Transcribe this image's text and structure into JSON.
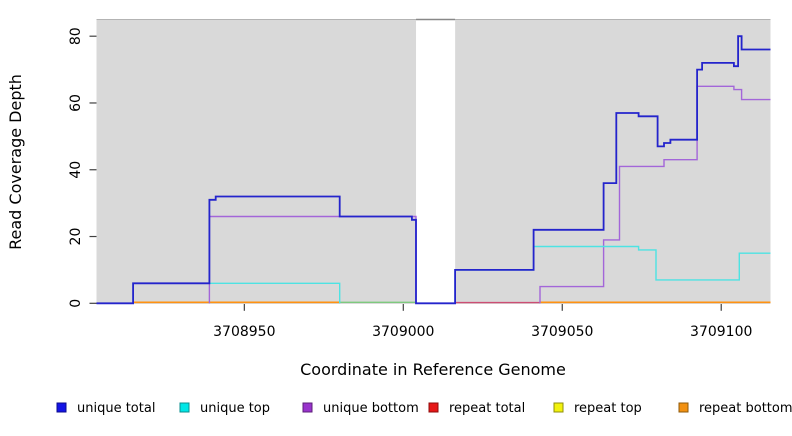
{
  "chart_data": {
    "type": "line",
    "subtype": "step-coverage",
    "title": "",
    "xlabel": "Coordinate in Reference Genome",
    "ylabel": "Read Coverage Depth",
    "xlim": [
      3708903.5,
      3709115.5
    ],
    "ylim": [
      0,
      85
    ],
    "grid": false,
    "legend_position": "bottom",
    "xticks": [
      3708950,
      3709000,
      3709050,
      3709100
    ],
    "xtick_labels": [
      "3708950",
      "3709000",
      "3709050",
      "3709100"
    ],
    "yticks": [
      0,
      20,
      40,
      60,
      80
    ],
    "ytick_labels": [
      "0",
      "20",
      "40",
      "60",
      "80"
    ],
    "panel_bg": "#d9d9d9",
    "gap_region": {
      "from": 3709004,
      "to": 3709016.3,
      "fill": "#ffffff",
      "top_border": "#888888"
    },
    "series": [
      {
        "name": "repeat top",
        "line_color": "#7ec97e",
        "width": 1.4,
        "note": "value 0 across plot; visible as green baseline overlap segment",
        "parts": [
          {
            "points": [
              [
                3708980,
                0.3
              ]
            ],
            "end": 3709004
          }
        ]
      },
      {
        "name": "repeat total",
        "line_color": "#cc4d73",
        "width": 1.4,
        "note": "value 0 across plot; visible as pink baseline segment",
        "parts": [
          {
            "points": [
              [
                3709016.3,
                0.2
              ]
            ],
            "end": 3709043
          }
        ]
      },
      {
        "name": "repeat bottom",
        "line_color": "#ff9212",
        "width": 1.6,
        "note": "value 0 across plot",
        "parts": [
          {
            "points": [
              [
                3708915,
                0.3
              ]
            ],
            "end": 3708980
          },
          {
            "points": [
              [
                3709043,
                0.3
              ]
            ],
            "end": 3709115.5
          }
        ]
      },
      {
        "name": "unique bottom",
        "line_color": "#a366d9",
        "width": 1.4,
        "parts": [
          {
            "points": [
              [
                3708939,
                0
              ],
              [
                3708939,
                26
              ],
              [
                3709004,
                0
              ]
            ],
            "end": 3709004
          },
          {
            "points": [
              [
                3709043,
                0
              ],
              [
                3709043,
                5
              ],
              [
                3709063,
                19
              ],
              [
                3709068,
                41
              ],
              [
                3709082,
                43
              ],
              [
                3709092.4,
                65
              ],
              [
                3709104,
                64
              ],
              [
                3709106.4,
                61
              ]
            ],
            "end": 3709115.5
          }
        ]
      },
      {
        "name": "unique top",
        "line_color": "#4de3e3",
        "width": 1.4,
        "parts": [
          {
            "points": [
              [
                3708903.5,
                0
              ],
              [
                3708915,
                6
              ],
              [
                3708980,
                0
              ]
            ],
            "end": 3708980
          },
          {
            "points": [
              [
                3709016.3,
                0
              ],
              [
                3709016.3,
                10
              ],
              [
                3709041,
                17
              ],
              [
                3709074,
                16
              ],
              [
                3709079.5,
                7
              ],
              [
                3709105.7,
                15
              ]
            ],
            "end": 3709115.5
          }
        ]
      },
      {
        "name": "unique total",
        "line_color": "#2424cc",
        "width": 1.8,
        "parts": [
          {
            "points": [
              [
                3708903.5,
                0
              ],
              [
                3708915,
                6
              ],
              [
                3708939,
                31
              ],
              [
                3708941,
                32
              ],
              [
                3708980,
                26
              ],
              [
                3709002.7,
                25
              ],
              [
                3709004,
                0
              ],
              [
                3709016.3,
                10
              ],
              [
                3709041,
                22
              ],
              [
                3709063,
                36
              ],
              [
                3709067,
                57
              ],
              [
                3709074,
                56
              ],
              [
                3709080,
                47
              ],
              [
                3709082,
                48
              ],
              [
                3709084,
                49
              ],
              [
                3709092.4,
                70
              ],
              [
                3709094,
                72
              ],
              [
                3709104,
                71
              ],
              [
                3709105.3,
                80
              ],
              [
                3709106.4,
                76
              ]
            ],
            "end": 3709115.5
          }
        ]
      }
    ],
    "legend": [
      {
        "label": "unique total",
        "fill": "#1414e6",
        "border": "#0b0b8f"
      },
      {
        "label": "unique top",
        "fill": "#00e6e6",
        "border": "#0b8f8f"
      },
      {
        "label": "unique bottom",
        "fill": "#9933cc",
        "border": "#5c1f7a"
      },
      {
        "label": "repeat total",
        "fill": "#e61717",
        "border": "#8f0b0b"
      },
      {
        "label": "repeat top",
        "fill": "#f2f20d",
        "border": "#8f8f0b"
      },
      {
        "label": "repeat bottom",
        "fill": "#f29112",
        "border": "#8f5a0b"
      }
    ]
  }
}
